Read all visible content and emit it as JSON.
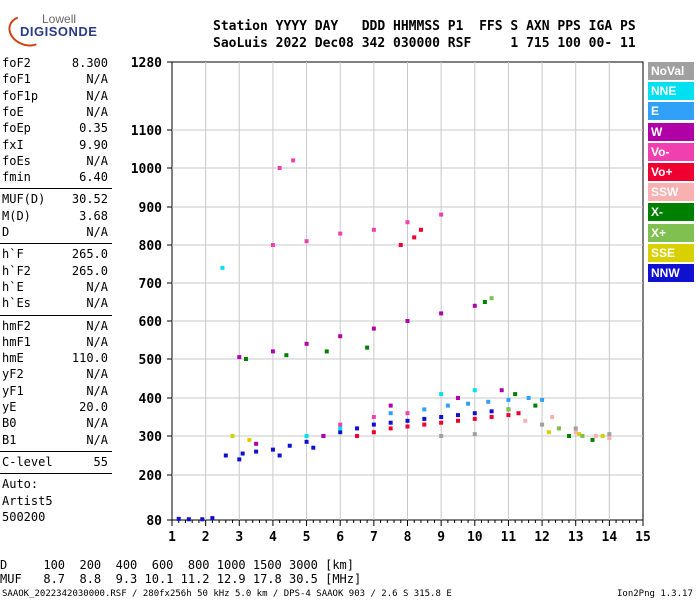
{
  "logo": {
    "line1": "Lowell",
    "line2": "DIGISONDE"
  },
  "header": {
    "line1": "Station YYYY DAY   DDD HHMMSS P1  FFS S AXN PPS IGA PS",
    "line2": "SaoLuis 2022 Dec08 342 030000 RSF     1 715 100 00- 11"
  },
  "params_group1": [
    {
      "name": "foF2",
      "value": "8.300"
    },
    {
      "name": "foF1",
      "value": "N/A"
    },
    {
      "name": "foF1p",
      "value": "N/A"
    },
    {
      "name": "foE",
      "value": "N/A"
    },
    {
      "name": "foEp",
      "value": "0.35"
    },
    {
      "name": "fxI",
      "value": "9.90"
    },
    {
      "name": "foEs",
      "value": "N/A"
    },
    {
      "name": "fmin",
      "value": "6.40"
    }
  ],
  "params_group2": [
    {
      "name": "MUF(D)",
      "value": "30.52"
    },
    {
      "name": "M(D)",
      "value": "3.68"
    },
    {
      "name": "D",
      "value": "N/A"
    }
  ],
  "params_group3": [
    {
      "name": "h`F",
      "value": "265.0"
    },
    {
      "name": "h`F2",
      "value": "265.0"
    },
    {
      "name": "h`E",
      "value": "N/A"
    },
    {
      "name": "h`Es",
      "value": "N/A"
    }
  ],
  "params_group4": [
    {
      "name": "hmF2",
      "value": "N/A"
    },
    {
      "name": "hmF1",
      "value": "N/A"
    },
    {
      "name": "hmE",
      "value": "110.0"
    },
    {
      "name": "yF2",
      "value": "N/A"
    },
    {
      "name": "yF1",
      "value": "N/A"
    },
    {
      "name": "yE",
      "value": "20.0"
    },
    {
      "name": "B0",
      "value": "N/A"
    },
    {
      "name": "B1",
      "value": "N/A"
    }
  ],
  "params_group5": [
    {
      "name": "C-level",
      "value": "55"
    }
  ],
  "auto": {
    "line1": "Auto:",
    "line2": "Artist5",
    "line3": "500200"
  },
  "legend": [
    {
      "label": "NoVal",
      "color": "#a0a0a0"
    },
    {
      "label": "NNE",
      "color": "#00e0f0"
    },
    {
      "label": "E",
      "color": "#30a0f8"
    },
    {
      "label": "W",
      "color": "#b000a8"
    },
    {
      "label": "Vo-",
      "color": "#f040b0"
    },
    {
      "label": "Vo+",
      "color": "#f00030"
    },
    {
      "label": "SSW",
      "color": "#f8b0b0"
    },
    {
      "label": "X-",
      "color": "#008000"
    },
    {
      "label": "X+",
      "color": "#80c050"
    },
    {
      "label": "SSE",
      "color": "#d8d000"
    },
    {
      "label": "NNW",
      "color": "#1010d0"
    }
  ],
  "bottom": {
    "d_line": "D     100  200  400  600  800 1000 1500 3000 [km]",
    "muf_line": "MUF   8.7  8.8  9.3 10.1 11.2 12.9 17.8 30.5 [MHz]"
  },
  "footer": {
    "left": "SAAOK_2022342030000.RSF / 280fx256h 50 kHz 5.0 km / DPS-4 SAAOK 903 / 2.6 S 315.8 E",
    "right": "Ion2Png 1.3.17"
  },
  "chart_data": {
    "type": "scatter",
    "x_ticks": [
      "1",
      "2",
      "3",
      "4",
      "5",
      "6",
      "7",
      "8",
      "9",
      "10",
      "11",
      "12",
      "13",
      "14",
      "15"
    ],
    "y_ticks": [
      "80",
      "200",
      "300",
      "400",
      "500",
      "600",
      "700",
      "800",
      "900",
      "1000",
      "1100",
      "1280"
    ],
    "xlim": [
      1,
      15
    ],
    "ylim": [
      80,
      1280
    ],
    "y_scale": "nonlinear (ionogram virtual height)",
    "grid": true,
    "traces": [
      {
        "name": "NNW",
        "color": "#1010d0",
        "points": [
          [
            1.2,
            83
          ],
          [
            1.5,
            82
          ],
          [
            1.9,
            82
          ],
          [
            2.2,
            85
          ],
          [
            2.6,
            250
          ],
          [
            3.1,
            255
          ],
          [
            3.5,
            260
          ],
          [
            4.0,
            265
          ],
          [
            4.5,
            275
          ],
          [
            5.0,
            285
          ],
          [
            5.5,
            300
          ],
          [
            6.0,
            310
          ],
          [
            6.5,
            320
          ],
          [
            7.0,
            330
          ],
          [
            7.5,
            335
          ],
          [
            8.0,
            340
          ],
          [
            8.5,
            345
          ],
          [
            9.0,
            350
          ],
          [
            9.5,
            355
          ],
          [
            10.0,
            360
          ],
          [
            10.5,
            365
          ],
          [
            11.0,
            370
          ],
          [
            3.0,
            240
          ],
          [
            4.2,
            250
          ],
          [
            5.2,
            270
          ]
        ]
      },
      {
        "name": "Vo+",
        "color": "#f00030",
        "points": [
          [
            6.5,
            300
          ],
          [
            7.0,
            310
          ],
          [
            7.5,
            320
          ],
          [
            8.0,
            325
          ],
          [
            8.5,
            330
          ],
          [
            9.0,
            335
          ],
          [
            9.5,
            340
          ],
          [
            10.0,
            345
          ],
          [
            10.5,
            350
          ],
          [
            11.0,
            355
          ],
          [
            11.3,
            360
          ],
          [
            8.2,
            820
          ],
          [
            7.8,
            800
          ],
          [
            8.4,
            840
          ]
        ]
      },
      {
        "name": "W",
        "color": "#b000a8",
        "points": [
          [
            3.0,
            505
          ],
          [
            4.0,
            520
          ],
          [
            5.0,
            540
          ],
          [
            6.0,
            560
          ],
          [
            7.0,
            580
          ],
          [
            8.0,
            600
          ],
          [
            9.0,
            620
          ],
          [
            10.0,
            640
          ],
          [
            3.5,
            280
          ],
          [
            5.5,
            300
          ],
          [
            7.5,
            380
          ],
          [
            9.5,
            400
          ],
          [
            10.8,
            420
          ]
        ]
      },
      {
        "name": "E",
        "color": "#30a0f8",
        "points": [
          [
            8.5,
            370
          ],
          [
            9.2,
            380
          ],
          [
            9.8,
            385
          ],
          [
            10.4,
            390
          ],
          [
            11.0,
            395
          ],
          [
            11.6,
            400
          ],
          [
            12.0,
            395
          ],
          [
            7.5,
            360
          ]
        ]
      },
      {
        "name": "X-",
        "color": "#008000",
        "points": [
          [
            3.2,
            500
          ],
          [
            4.4,
            510
          ],
          [
            5.6,
            520
          ],
          [
            6.8,
            530
          ],
          [
            11.2,
            410
          ],
          [
            11.8,
            380
          ],
          [
            12.8,
            300
          ],
          [
            13.5,
            290
          ],
          [
            10.3,
            650
          ]
        ]
      },
      {
        "name": "SSW",
        "color": "#f8b0b0",
        "points": [
          [
            11.5,
            340
          ],
          [
            12.0,
            330
          ],
          [
            12.5,
            320
          ],
          [
            13.0,
            310
          ],
          [
            13.6,
            300
          ],
          [
            14.0,
            295
          ],
          [
            12.3,
            350
          ]
        ]
      },
      {
        "name": "SSE",
        "color": "#d8d000",
        "points": [
          [
            12.2,
            310
          ],
          [
            13.1,
            305
          ],
          [
            13.8,
            300
          ],
          [
            2.8,
            300
          ],
          [
            3.3,
            290
          ]
        ]
      },
      {
        "name": "NNE",
        "color": "#00e0f0",
        "points": [
          [
            5.0,
            300
          ],
          [
            6.0,
            320
          ],
          [
            9.0,
            410
          ],
          [
            10.0,
            420
          ],
          [
            2.5,
            740
          ]
        ]
      },
      {
        "name": "Vo-",
        "color": "#f040b0",
        "points": [
          [
            6.0,
            330
          ],
          [
            7.0,
            350
          ],
          [
            8.0,
            360
          ],
          [
            4.0,
            800
          ],
          [
            5.0,
            810
          ],
          [
            6.0,
            830
          ],
          [
            7.0,
            840
          ],
          [
            8.0,
            860
          ],
          [
            9.0,
            880
          ],
          [
            4.2,
            1000
          ],
          [
            4.6,
            1020
          ]
        ]
      },
      {
        "name": "X+",
        "color": "#80c050",
        "points": [
          [
            12.5,
            320
          ],
          [
            13.2,
            300
          ],
          [
            11.0,
            370
          ],
          [
            10.5,
            660
          ]
        ]
      },
      {
        "name": "NoVal",
        "color": "#a0a0a0",
        "points": [
          [
            12.0,
            330
          ],
          [
            13.0,
            320
          ],
          [
            14.0,
            305
          ],
          [
            9.0,
            300
          ],
          [
            10.0,
            305
          ]
        ]
      }
    ]
  }
}
